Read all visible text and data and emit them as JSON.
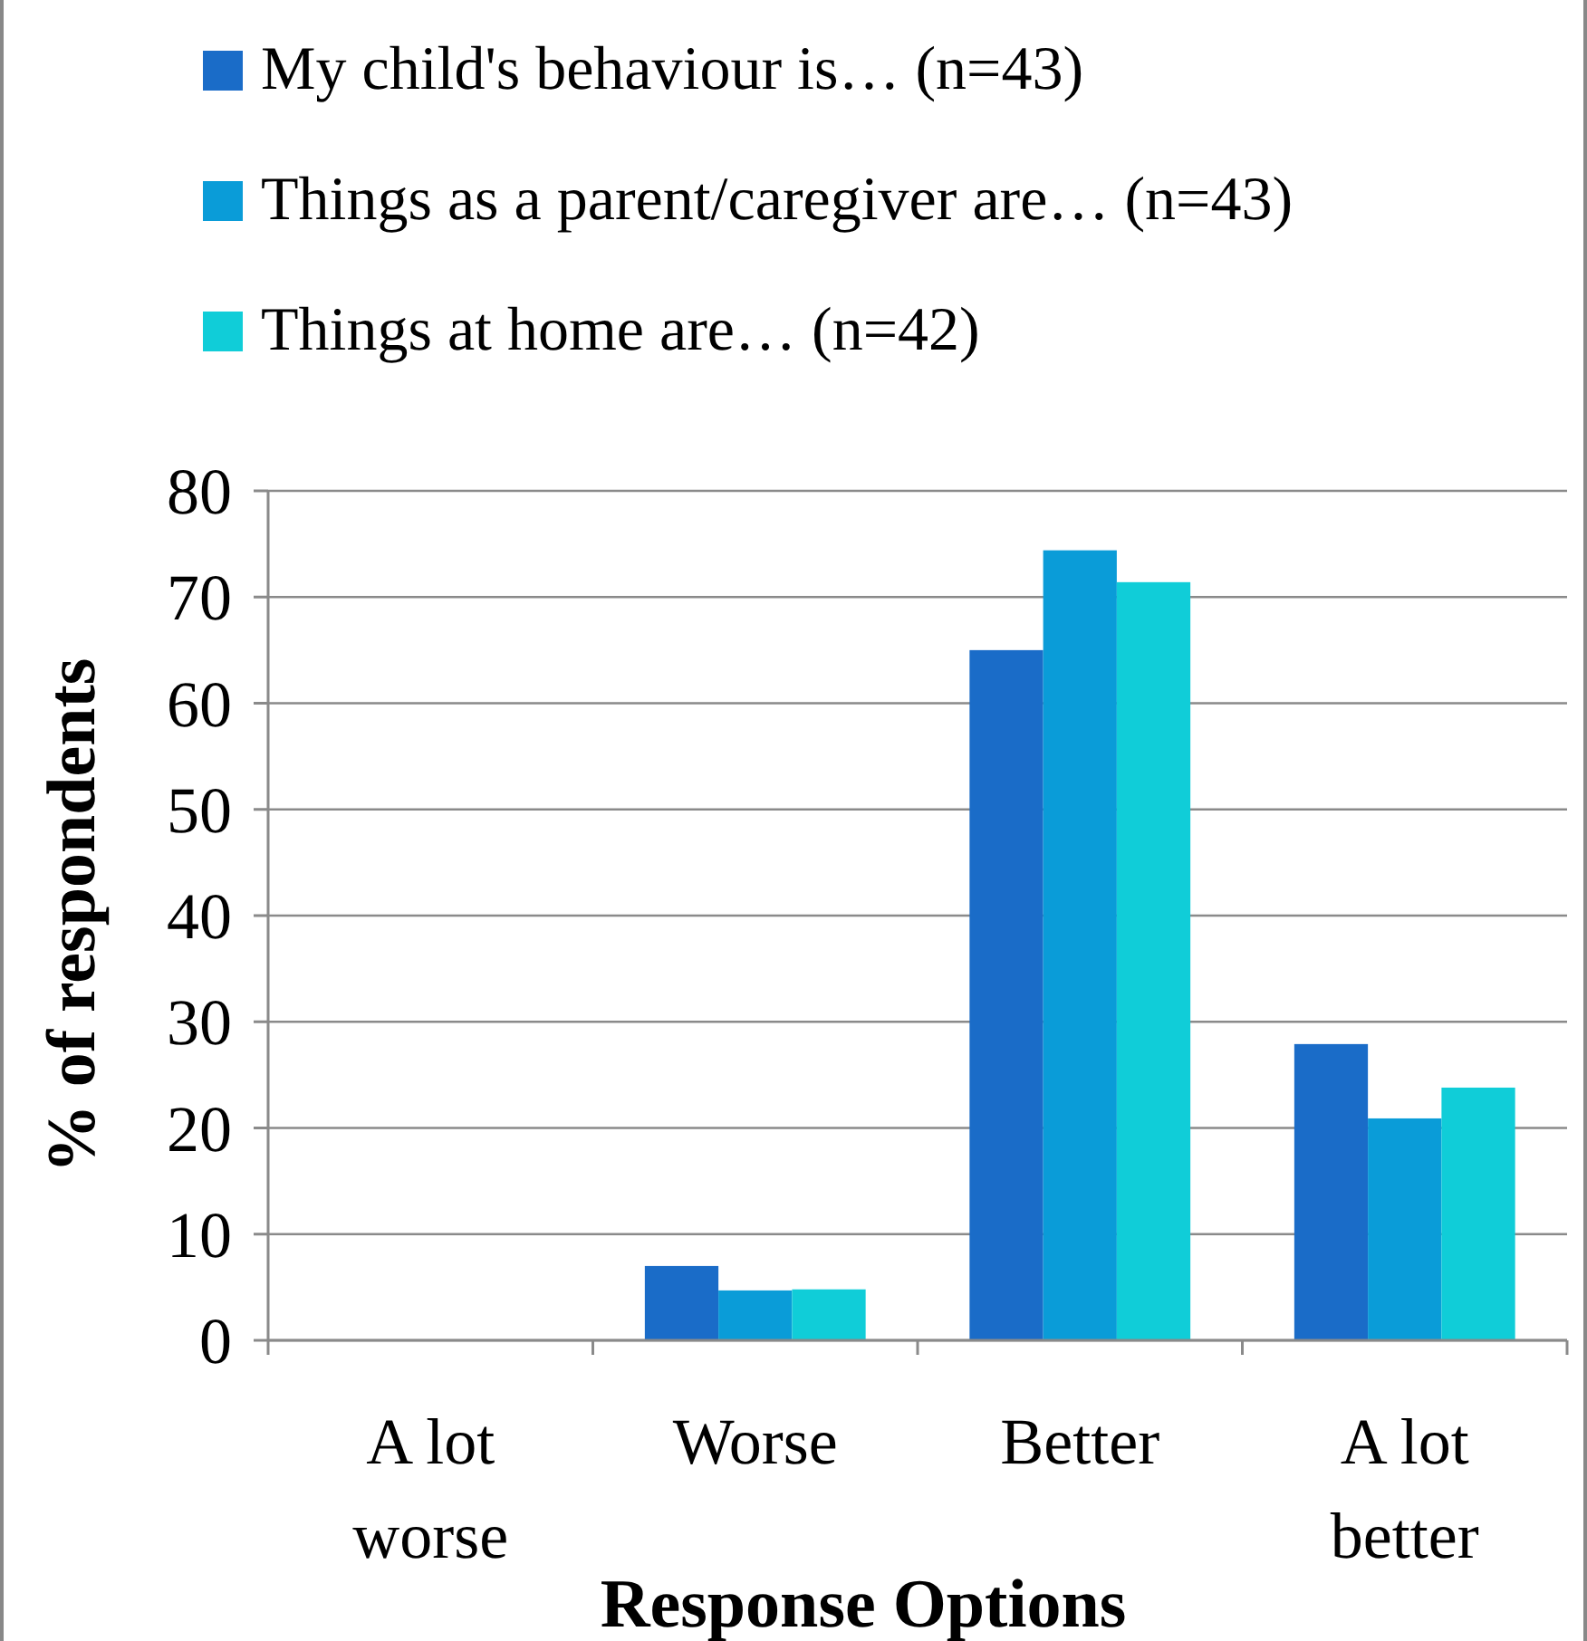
{
  "chart_data": {
    "type": "bar",
    "xlabel": "Response Options",
    "ylabel": "% of respondents",
    "categories": [
      "A lot worse",
      "Worse",
      "Better",
      "A lot better"
    ],
    "series": [
      {
        "name": "My child's behaviour is… (n=43)",
        "color": "#1a6cc8",
        "values": [
          0,
          7,
          65,
          27.9
        ]
      },
      {
        "name": "Things as a parent/caregiver are…  (n=43)",
        "color": "#0a9cd8",
        "values": [
          0,
          4.7,
          74.4,
          20.9
        ]
      },
      {
        "name": "Things at home are…  (n=42)",
        "color": "#10cdd8",
        "values": [
          0,
          4.8,
          71.4,
          23.8
        ]
      }
    ],
    "ylim": [
      0,
      80
    ],
    "yticks": [
      0,
      10,
      20,
      30,
      40,
      50,
      60,
      70,
      80
    ],
    "grid": "y",
    "legend": "top"
  }
}
